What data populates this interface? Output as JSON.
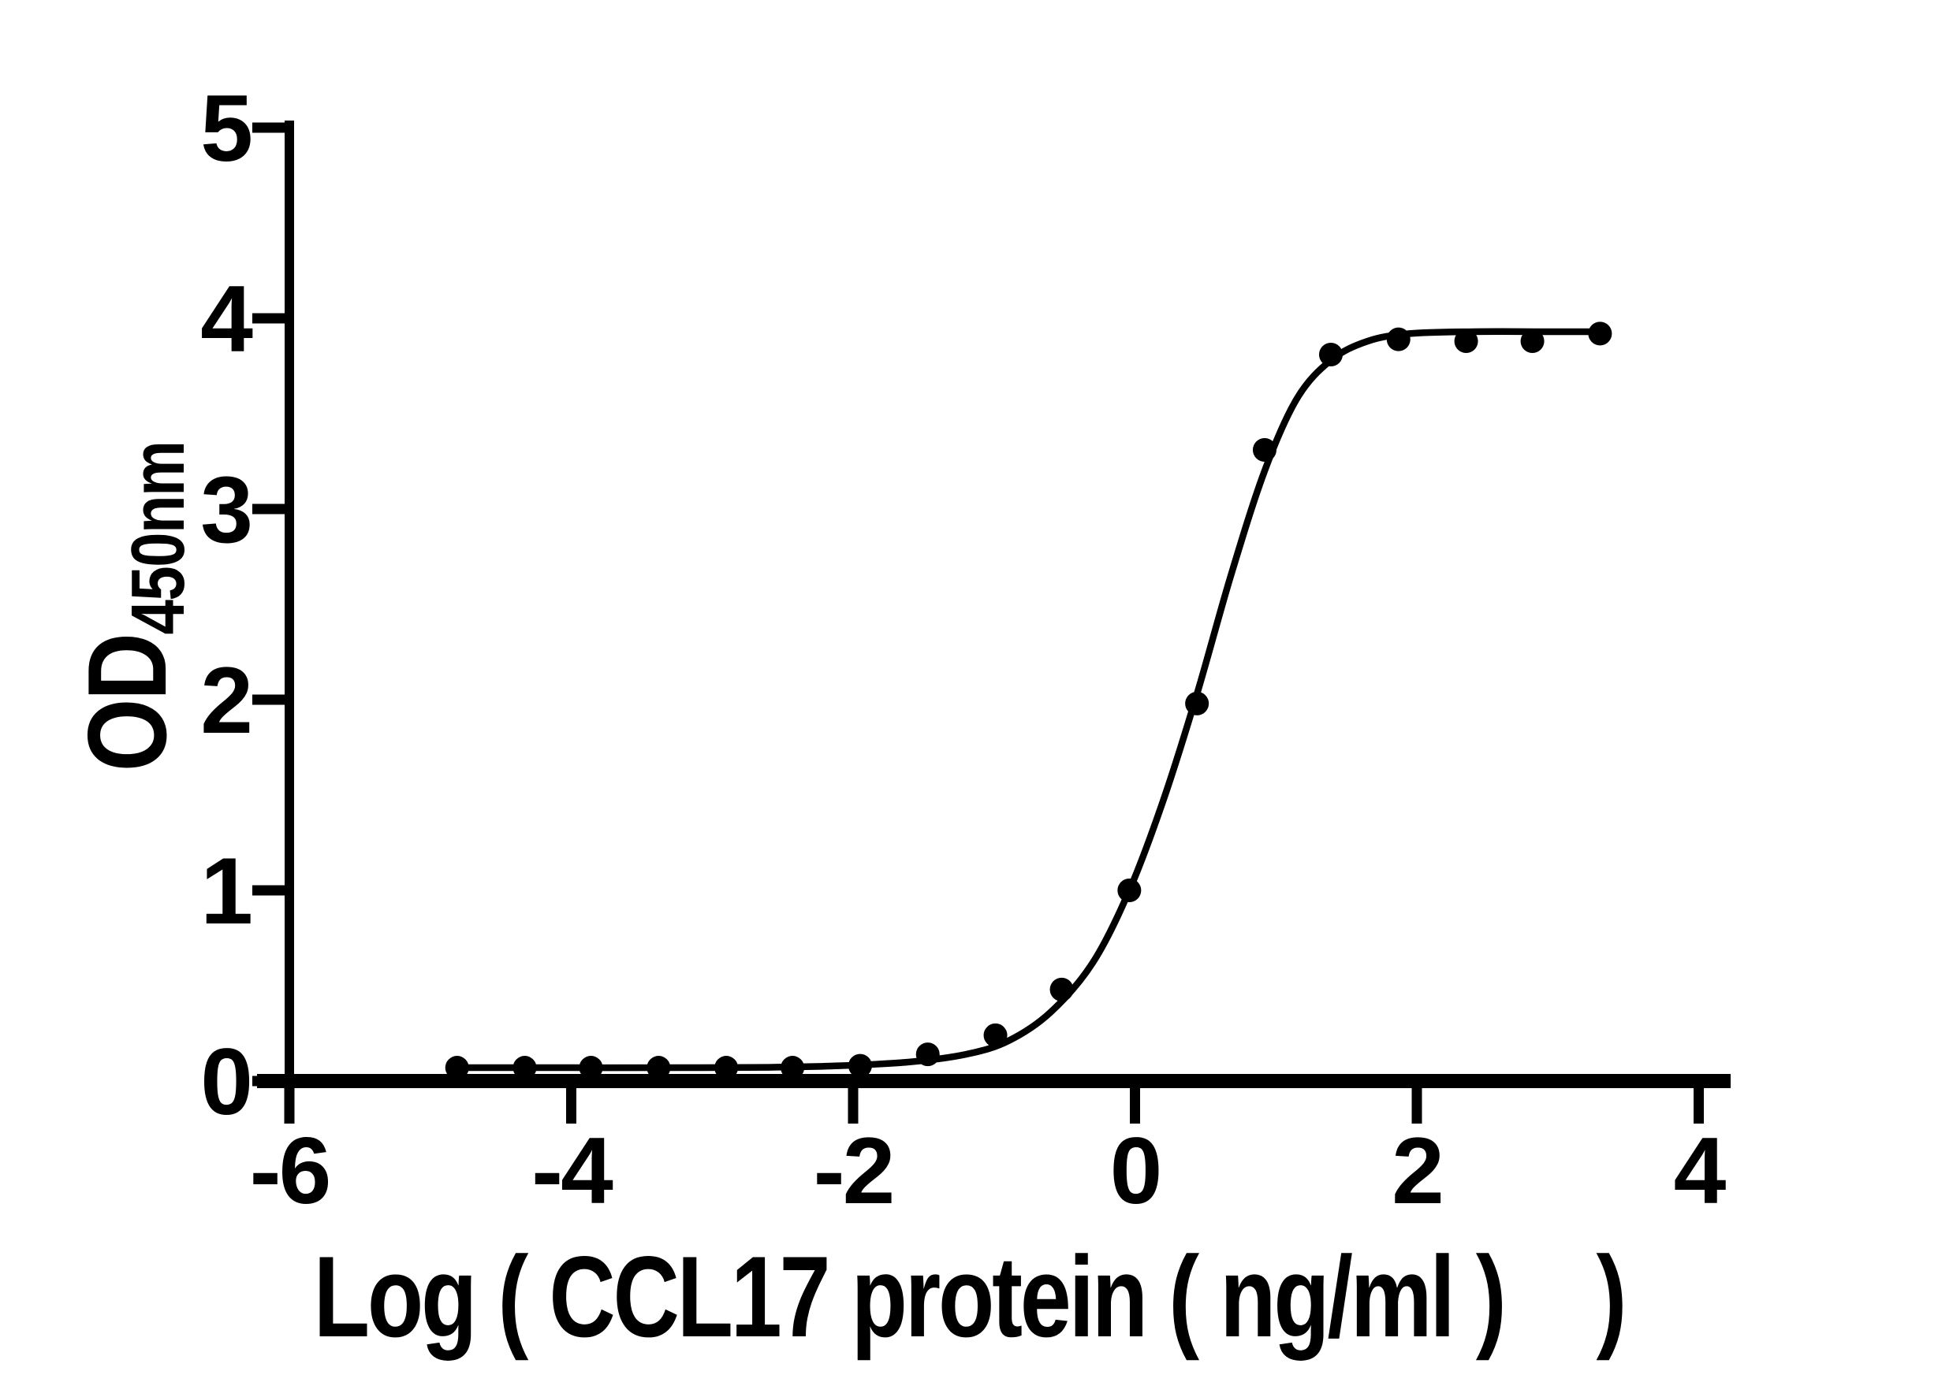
{
  "figure": {
    "background_color": "#ffffff",
    "ink_color": "#000000"
  },
  "chart_data": {
    "type": "scatter",
    "title": "",
    "xlabel": "Log ( CCL17 protein ( ng/ml )    )",
    "ylabel_main": "OD",
    "ylabel_subscript": "450nm",
    "xlim": [
      -6.25,
      4.25
    ],
    "ylim": [
      0,
      5
    ],
    "x_ticks": [
      "-6",
      "-4",
      "-2",
      "0",
      "2",
      "4"
    ],
    "x_tick_values": [
      -6,
      -4,
      -2,
      0,
      2,
      4
    ],
    "y_ticks": [
      "0",
      "1",
      "2",
      "3",
      "4",
      "5"
    ],
    "y_tick_values": [
      0,
      1,
      2,
      3,
      4,
      5
    ],
    "grid": false,
    "legend": "none",
    "marker": "filled-circle",
    "series": [
      {
        "name": "data-points",
        "color": "#000000",
        "points": [
          [
            -4.81,
            0.07
          ],
          [
            -4.33,
            0.07
          ],
          [
            -3.86,
            0.07
          ],
          [
            -3.38,
            0.07
          ],
          [
            -2.9,
            0.07
          ],
          [
            -2.43,
            0.07
          ],
          [
            -1.95,
            0.08
          ],
          [
            -1.47,
            0.14
          ],
          [
            -0.99,
            0.24
          ],
          [
            -0.52,
            0.48
          ],
          [
            -0.04,
            1.0
          ],
          [
            0.44,
            1.98
          ],
          [
            0.92,
            3.31
          ],
          [
            1.39,
            3.81
          ],
          [
            1.87,
            3.89
          ],
          [
            2.35,
            3.88
          ],
          [
            2.82,
            3.88
          ],
          [
            3.3,
            3.92
          ]
        ]
      }
    ],
    "fit_curve": {
      "name": "sigmoidal-fit-curve",
      "color": "#000000",
      "control_points": [
        [
          -4.81,
          0.07
        ],
        [
          -4.0,
          0.07
        ],
        [
          -3.2,
          0.07
        ],
        [
          -2.6,
          0.072
        ],
        [
          -2.1,
          0.08
        ],
        [
          -1.6,
          0.1
        ],
        [
          -1.2,
          0.14
        ],
        [
          -0.9,
          0.21
        ],
        [
          -0.6,
          0.36
        ],
        [
          -0.3,
          0.62
        ],
        [
          -0.04,
          1.0
        ],
        [
          0.2,
          1.47
        ],
        [
          0.44,
          2.03
        ],
        [
          0.68,
          2.65
        ],
        [
          0.92,
          3.2
        ],
        [
          1.15,
          3.58
        ],
        [
          1.39,
          3.78
        ],
        [
          1.65,
          3.88
        ],
        [
          1.95,
          3.92
        ],
        [
          2.4,
          3.93
        ],
        [
          2.9,
          3.93
        ],
        [
          3.32,
          3.93
        ]
      ]
    }
  }
}
